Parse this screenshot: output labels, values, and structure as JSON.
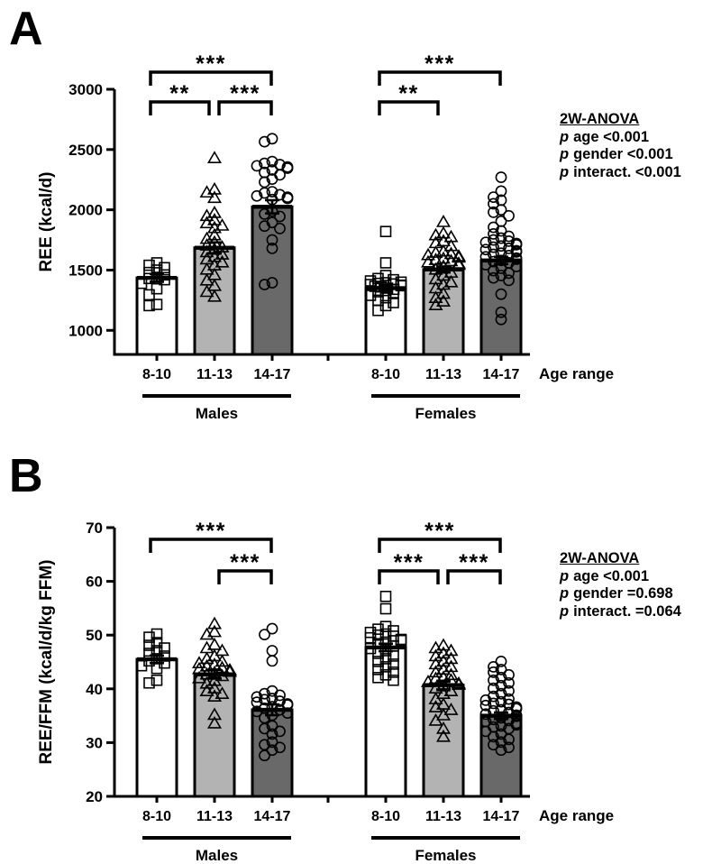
{
  "chart_data": [
    {
      "panel_label": "A",
      "type": "bar",
      "ylabel": "REE (kcal/d)",
      "xlabel": "Age range",
      "ylim": [
        800,
        3000
      ],
      "yticks": [
        1000,
        1500,
        2000,
        2500,
        3000
      ],
      "categories": [
        "8-10",
        "11-13",
        "14-17"
      ],
      "group_labels": [
        "Males",
        "Females"
      ],
      "bar_colors": {
        "8-10": "#ffffff",
        "11-13": "#b3b3b3",
        "14-17": "#696969"
      },
      "markers": {
        "8-10": "square",
        "11-13": "triangle",
        "14-17": "circle"
      },
      "stats": {
        "title": "2W-ANOVA",
        "lines": [
          {
            "label": "p",
            "value": "age <0.001"
          },
          {
            "label": "p",
            "value": "gender <0.001"
          },
          {
            "label": "p",
            "value": "interact. <0.001"
          }
        ]
      },
      "series": [
        {
          "group": "Males",
          "bars": [
            {
              "category": "8-10",
              "mean": 1435,
              "sem": 32,
              "points": [
                1560,
                1540,
                1520,
                1500,
                1480,
                1460,
                1440,
                1430,
                1420,
                1390,
                1345,
                1295,
                1215,
                1205
              ]
            },
            {
              "category": "11-13",
              "mean": 1685,
              "sem": 45,
              "points": [
                2430,
                2170,
                2145,
                2100,
                1975,
                1950,
                1915,
                1890,
                1870,
                1850,
                1790,
                1760,
                1730,
                1705,
                1690,
                1670,
                1650,
                1630,
                1610,
                1590,
                1565,
                1540,
                1505,
                1460,
                1415,
                1370,
                1320,
                1280
              ]
            },
            {
              "category": "14-17",
              "mean": 2025,
              "sem": 55,
              "points": [
                2590,
                2565,
                2400,
                2385,
                2375,
                2365,
                2355,
                2345,
                2330,
                2310,
                2290,
                2255,
                2230,
                2150,
                2140,
                2125,
                2115,
                2105,
                2095,
                2085,
                1990,
                1965,
                1945,
                1895,
                1865,
                1845,
                1750,
                1680,
                1395,
                1380
              ]
            }
          ]
        },
        {
          "group": "Females",
          "bars": [
            {
              "category": "8-10",
              "mean": 1350,
              "sem": 25,
              "points": [
                1820,
                1560,
                1455,
                1430,
                1420,
                1410,
                1400,
                1395,
                1390,
                1385,
                1380,
                1375,
                1370,
                1365,
                1360,
                1350,
                1340,
                1330,
                1320,
                1305,
                1290,
                1270,
                1250,
                1230,
                1205,
                1165
              ]
            },
            {
              "category": "11-13",
              "mean": 1505,
              "sem": 25,
              "points": [
                1900,
                1805,
                1790,
                1775,
                1740,
                1725,
                1700,
                1655,
                1645,
                1635,
                1625,
                1615,
                1605,
                1595,
                1585,
                1575,
                1565,
                1555,
                1545,
                1530,
                1505,
                1480,
                1455,
                1425,
                1400,
                1380,
                1350,
                1305,
                1270,
                1240,
                1210
              ]
            },
            {
              "category": "14-17",
              "mean": 1580,
              "sem": 30,
              "points": [
                2270,
                2155,
                2105,
                2080,
                2050,
                2000,
                1980,
                1950,
                1905,
                1855,
                1825,
                1800,
                1780,
                1765,
                1750,
                1740,
                1730,
                1720,
                1710,
                1700,
                1690,
                1680,
                1670,
                1660,
                1650,
                1640,
                1630,
                1620,
                1610,
                1600,
                1590,
                1580,
                1570,
                1560,
                1545,
                1530,
                1515,
                1495,
                1475,
                1455,
                1435,
                1415,
                1300,
                1150,
                1090
              ]
            }
          ]
        }
      ],
      "significance_brackets": [
        {
          "group": 0,
          "from": 0,
          "to": 2,
          "stars": "***",
          "row": 0
        },
        {
          "group": 0,
          "from": 0,
          "to": 1,
          "stars": "**",
          "row": 1
        },
        {
          "group": 0,
          "from": 1,
          "to": 2,
          "stars": "***",
          "row": 1
        },
        {
          "group": 1,
          "from": 0,
          "to": 2,
          "stars": "***",
          "row": 0
        },
        {
          "group": 1,
          "from": 0,
          "to": 1,
          "stars": "**",
          "row": 1
        }
      ]
    },
    {
      "panel_label": "B",
      "type": "bar",
      "ylabel": "REE/FFM (kcal/d/kg FFM)",
      "xlabel": "Age range",
      "ylim": [
        20,
        70
      ],
      "yticks": [
        20,
        30,
        40,
        50,
        60,
        70
      ],
      "categories": [
        "8-10",
        "11-13",
        "14-17"
      ],
      "group_labels": [
        "Males",
        "Females"
      ],
      "bar_colors": {
        "8-10": "#ffffff",
        "11-13": "#b3b3b3",
        "14-17": "#696969"
      },
      "markers": {
        "8-10": "square",
        "11-13": "triangle",
        "14-17": "circle"
      },
      "stats": {
        "title": "2W-ANOVA",
        "lines": [
          {
            "label": "p",
            "value": "age <0.001"
          },
          {
            "label": "p",
            "value": "gender =0.698"
          },
          {
            "label": "p",
            "value": "interact. =0.064"
          }
        ]
      },
      "series": [
        {
          "group": "Males",
          "bars": [
            {
              "category": "8-10",
              "mean": 45.5,
              "sem": 0.7,
              "points": [
                50.2,
                49.6,
                48.6,
                48.1,
                47.6,
                47.1,
                46.6,
                46.1,
                45.6,
                45.2,
                44.8,
                44.3,
                43.8,
                41.6,
                41.1
              ]
            },
            {
              "category": "11-13",
              "mean": 42.7,
              "sem": 0.8,
              "points": [
                52.1,
                50.6,
                50.1,
                48.2,
                47.6,
                47.1,
                46.1,
                45.6,
                45.1,
                44.8,
                44.5,
                44.2,
                43.9,
                43.7,
                43.5,
                43.2,
                43.0,
                42.7,
                42.4,
                42.0,
                41.5,
                41.0,
                40.1,
                39.6,
                39.1,
                38.6,
                35.2,
                33.6
              ]
            },
            {
              "category": "14-17",
              "mean": 36.1,
              "sem": 1.0,
              "points": [
                51.2,
                50.1,
                47.1,
                45.2,
                39.6,
                39.1,
                38.8,
                38.5,
                38.2,
                38.0,
                37.7,
                37.5,
                37.2,
                37.0,
                36.7,
                36.4,
                36.1,
                35.8,
                35.5,
                35.1,
                34.6,
                33.1,
                32.6,
                32.1,
                31.6,
                30.1,
                29.6,
                29.1,
                28.6,
                27.6
              ]
            }
          ]
        },
        {
          "group": "Females",
          "bars": [
            {
              "category": "8-10",
              "mean": 47.7,
              "sem": 0.7,
              "points": [
                57.2,
                54.9,
                51.6,
                51.1,
                50.8,
                50.5,
                50.2,
                50.0,
                49.8,
                49.5,
                49.2,
                49.0,
                48.7,
                48.4,
                48.0,
                47.5,
                47.1,
                46.6,
                46.1,
                45.6,
                45.1,
                44.6,
                44.1,
                43.6,
                43.1,
                42.6,
                42.1,
                41.6
              ]
            },
            {
              "category": "11-13",
              "mean": 40.7,
              "sem": 0.8,
              "points": [
                48.1,
                47.6,
                47.1,
                46.6,
                46.1,
                45.6,
                45.1,
                44.6,
                44.1,
                43.6,
                43.1,
                42.6,
                42.1,
                41.9,
                41.6,
                41.3,
                41.0,
                40.8,
                40.5,
                40.1,
                39.6,
                39.1,
                38.1,
                37.1,
                36.6,
                36.1,
                35.1,
                34.1,
                32.6,
                31.1
              ]
            },
            {
              "category": "14-17",
              "mean": 35.0,
              "sem": 0.6,
              "points": [
                45.1,
                44.1,
                43.6,
                43.1,
                42.6,
                42.1,
                41.6,
                41.1,
                40.6,
                40.1,
                39.6,
                39.1,
                38.6,
                38.1,
                37.9,
                37.6,
                37.3,
                37.1,
                36.9,
                36.6,
                36.3,
                36.1,
                35.9,
                35.6,
                35.3,
                35.1,
                34.9,
                34.6,
                34.3,
                34.1,
                33.9,
                33.6,
                33.3,
                33.1,
                32.9,
                32.6,
                32.1,
                31.6,
                31.1,
                30.6,
                30.1,
                29.6,
                29.1,
                28.6
              ]
            }
          ]
        }
      ],
      "significance_brackets": [
        {
          "group": 0,
          "from": 0,
          "to": 2,
          "stars": "***",
          "row": 0
        },
        {
          "group": 0,
          "from": 1,
          "to": 2,
          "stars": "***",
          "row": 1
        },
        {
          "group": 1,
          "from": 0,
          "to": 2,
          "stars": "***",
          "row": 0
        },
        {
          "group": 1,
          "from": 0,
          "to": 1,
          "stars": "***",
          "row": 1
        },
        {
          "group": 1,
          "from": 1,
          "to": 2,
          "stars": "***",
          "row": 1
        }
      ]
    }
  ]
}
